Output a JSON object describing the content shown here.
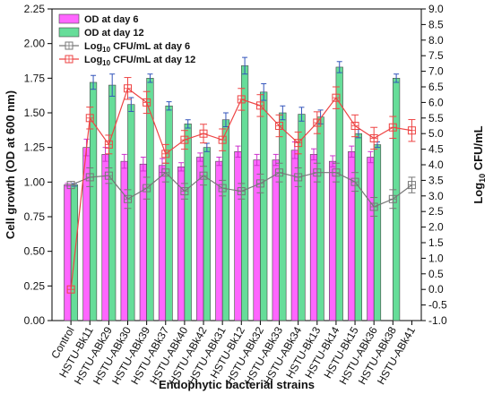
{
  "chart_data": {
    "type": "bar",
    "xlabel": "Endophytic bacterial strains",
    "ylabel": "Cell growth (OD at 600 nm)",
    "y2label_base": "Log",
    "y2label_sub": "10",
    "y2label_rest": " CFU/mL",
    "ylim": [
      0,
      2.25
    ],
    "y2lim": [
      -1.0,
      9.0
    ],
    "yticks": [
      "0.00",
      "0.25",
      "0.50",
      "0.75",
      "1.00",
      "1.25",
      "1.50",
      "1.75",
      "2.00",
      "2.25"
    ],
    "y2ticks": [
      "-1.0",
      "-0.5",
      "0.0",
      "0.5",
      "1.0",
      "1.5",
      "2.0",
      "2.5",
      "3.0",
      "3.5",
      "4.0",
      "4.5",
      "5.0",
      "5.5",
      "6.0",
      "6.5",
      "7.0",
      "7.5",
      "8.0",
      "8.5",
      "9.0"
    ],
    "categories": [
      "Control",
      "HSTU-Bk11",
      "HSTU-ABk29",
      "HSTU-ABk30",
      "HSTU-ABk39",
      "HSTU-ABk37",
      "HSTU-ABk40",
      "HSTU-ABk42",
      "HSTU-ABk31",
      "HSTU-Bk12",
      "HSTU-ABk32",
      "HSTU-ABk33",
      "HSTU-ABk34",
      "HSTU-Bk13",
      "HSTU-Bk14",
      "HSTU-Bk15",
      "HSTU-ABk36",
      "HSTU-ABk38",
      "HSTU-ABk41"
    ],
    "legend_position": "top-left",
    "series": [
      {
        "name": "OD at day 6",
        "kind": "bar",
        "axis": "left",
        "color": "#ff66ff",
        "values": [
          0.98,
          1.25,
          1.2,
          1.15,
          1.13,
          1.12,
          1.11,
          1.18,
          1.15,
          1.22,
          1.16,
          1.16,
          1.23,
          1.2,
          1.15,
          1.22,
          1.18,
          0,
          0
        ],
        "errors": [
          0.01,
          0.06,
          0.05,
          0.05,
          0.05,
          0.05,
          0.03,
          0.03,
          0.03,
          0.04,
          0.04,
          0.04,
          0.06,
          0.04,
          0.04,
          0.04,
          0.04,
          0,
          0
        ]
      },
      {
        "name": "OD at day 12",
        "kind": "bar",
        "axis": "left",
        "color": "#66dd99",
        "values": [
          0.98,
          1.72,
          1.7,
          1.56,
          1.75,
          1.55,
          1.42,
          1.25,
          1.45,
          1.84,
          1.65,
          1.5,
          1.49,
          1.47,
          1.83,
          1.35,
          1.27,
          1.75,
          0
        ],
        "errors": [
          0.01,
          0.05,
          0.08,
          0.05,
          0.03,
          0.03,
          0.03,
          0.03,
          0.05,
          0.06,
          0.06,
          0.05,
          0.05,
          0.05,
          0.04,
          0.03,
          0.02,
          0.03,
          0
        ]
      },
      {
        "name": "Log10 CFU/mL at day 6",
        "name_base": "Log",
        "name_sub": "10",
        "name_rest": " CFU/mL at day 6",
        "kind": "line",
        "axis": "right",
        "color": "#777777",
        "values": [
          3.35,
          3.6,
          3.65,
          2.9,
          3.25,
          3.75,
          3.15,
          3.65,
          3.25,
          3.15,
          3.4,
          3.75,
          3.6,
          3.75,
          3.75,
          3.45,
          2.65,
          2.9,
          3.35
        ],
        "errors": [
          0.0,
          0.3,
          0.25,
          0.3,
          0.35,
          0.3,
          0.25,
          0.3,
          0.25,
          0.25,
          0.3,
          0.3,
          0.3,
          0.3,
          0.3,
          0.3,
          0.3,
          0.3,
          0.25
        ]
      },
      {
        "name": "Log10 CFU/mL at day 12",
        "name_base": "Log",
        "name_sub": "10",
        "name_rest": " CFU/mL at day 12",
        "kind": "line",
        "axis": "right",
        "color": "#ee4444",
        "values": [
          0.0,
          5.5,
          4.65,
          6.45,
          6.0,
          4.35,
          4.8,
          5.0,
          4.8,
          6.1,
          5.9,
          5.25,
          4.7,
          5.35,
          6.15,
          5.25,
          4.85,
          5.2,
          5.1
        ],
        "errors": [
          0.0,
          0.35,
          0.3,
          0.35,
          0.35,
          0.3,
          0.3,
          0.3,
          0.35,
          0.35,
          0.35,
          0.35,
          0.35,
          0.35,
          0.35,
          0.35,
          0.35,
          0.35,
          0.35
        ]
      }
    ]
  }
}
